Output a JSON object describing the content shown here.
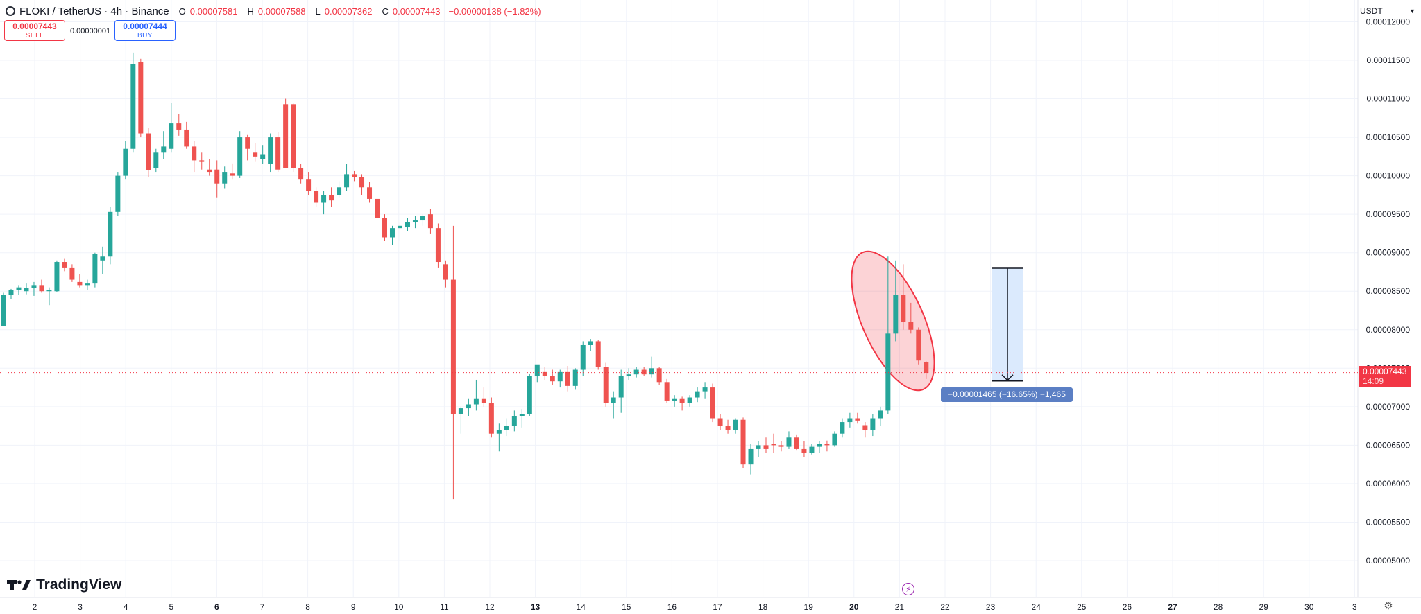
{
  "header": {
    "symbol": "FLOKI / TetherUS · 4h · Binance",
    "o_label": "O",
    "o_value": "0.00007581",
    "h_label": "H",
    "h_value": "0.00007588",
    "l_label": "L",
    "l_value": "0.00007362",
    "c_label": "C",
    "c_value": "0.00007443",
    "change": "−0.00000138 (−1.82%)"
  },
  "trade": {
    "sell_price": "0.00007443",
    "sell_label": "SELL",
    "buy_price": "0.00007444",
    "buy_label": "BUY",
    "spread": "0.00000001"
  },
  "currency": "USDT",
  "last_price": {
    "value": "0.00007443",
    "countdown": "14:09"
  },
  "measure": {
    "label": "−0.00001465 (−16.65%) −1,465",
    "start": 8.799e-05,
    "end": 7.334e-05
  },
  "logo": "TradingView",
  "colors": {
    "up": "#26a69a",
    "down": "#ef5350",
    "highlight": "#f23645",
    "measure_fill": "#dbeafd",
    "measure_label": "#5b7fc4"
  },
  "icons": {
    "settings": "gear-icon",
    "flash": "lightning-icon",
    "dropdown": "chevron-down-icon"
  },
  "chart_data": {
    "type": "candlestick",
    "title": "FLOKI / TetherUS · 4h · Binance",
    "ylim": [
      4.62e-05,
      1.22e-05
    ],
    "y_ticks": [
      "0.00012000",
      "0.00011500",
      "0.00011000",
      "0.00010500",
      "0.00010000",
      "0.00009500",
      "0.00009000",
      "0.00008500",
      "0.00008000",
      "0.00007500",
      "0.00007000",
      "0.00006500",
      "0.00006000",
      "0.00005500",
      "0.00005000"
    ],
    "x_ticks": [
      {
        "label": "2",
        "bold": false
      },
      {
        "label": "3",
        "bold": false
      },
      {
        "label": "4",
        "bold": false
      },
      {
        "label": "5",
        "bold": false
      },
      {
        "label": "6",
        "bold": true
      },
      {
        "label": "7",
        "bold": false
      },
      {
        "label": "8",
        "bold": false
      },
      {
        "label": "9",
        "bold": false
      },
      {
        "label": "10",
        "bold": false
      },
      {
        "label": "11",
        "bold": false
      },
      {
        "label": "12",
        "bold": false
      },
      {
        "label": "13",
        "bold": true
      },
      {
        "label": "14",
        "bold": false
      },
      {
        "label": "15",
        "bold": false
      },
      {
        "label": "16",
        "bold": false
      },
      {
        "label": "17",
        "bold": false
      },
      {
        "label": "18",
        "bold": false
      },
      {
        "label": "19",
        "bold": false
      },
      {
        "label": "20",
        "bold": true
      },
      {
        "label": "21",
        "bold": false
      },
      {
        "label": "22",
        "bold": false
      },
      {
        "label": "23",
        "bold": false
      },
      {
        "label": "24",
        "bold": false
      },
      {
        "label": "25",
        "bold": false
      },
      {
        "label": "26",
        "bold": false
      },
      {
        "label": "27",
        "bold": true
      },
      {
        "label": "28",
        "bold": false
      },
      {
        "label": "29",
        "bold": false
      },
      {
        "label": "30",
        "bold": false
      },
      {
        "label": "3",
        "bold": false
      }
    ],
    "candles": [
      [
        8.05e-05,
        8.48e-05,
        8.05e-05,
        8.45e-05
      ],
      [
        8.45e-05,
        8.53e-05,
        8.4e-05,
        8.52e-05
      ],
      [
        8.52e-05,
        8.58e-05,
        8.45e-05,
        8.55e-05
      ],
      [
        8.5e-05,
        8.6e-05,
        8.46e-05,
        8.54e-05
      ],
      [
        8.54e-05,
        8.62e-05,
        8.44e-05,
        8.58e-05
      ],
      [
        8.58e-05,
        8.65e-05,
        8.48e-05,
        8.5e-05
      ],
      [
        8.5e-05,
        8.55e-05,
        8.32e-05,
        8.52e-05
      ],
      [
        8.5e-05,
        8.9e-05,
        8.49e-05,
        8.88e-05
      ],
      [
        8.88e-05,
        8.92e-05,
        8.76e-05,
        8.8e-05
      ],
      [
        8.8e-05,
        8.85e-05,
        8.62e-05,
        8.65e-05
      ],
      [
        8.62e-05,
        8.72e-05,
        8.55e-05,
        8.58e-05
      ],
      [
        8.58e-05,
        8.65e-05,
        8.52e-05,
        8.6e-05
      ],
      [
        8.6e-05,
        9e-05,
        8.55e-05,
        8.98e-05
      ],
      [
        8.9e-05,
        9.08e-05,
        8.72e-05,
        8.95e-05
      ],
      [
        8.95e-05,
        9.6e-05,
        8.85e-05,
        9.53e-05
      ],
      [
        9.53e-05,
        0.0001005,
        9.48e-05,
        0.0001
      ],
      [
        0.0001,
        0.0001045,
        9.95e-05,
        0.0001035
      ],
      [
        0.0001035,
        0.000116,
        0.000103,
        0.0001145
      ],
      [
        0.0001148,
        0.0001152,
        0.000105,
        0.0001055
      ],
      [
        0.0001055,
        0.0001062,
        9.98e-05,
        0.0001007
      ],
      [
        0.000101,
        0.0001035,
        0.0001005,
        0.000103
      ],
      [
        0.000103,
        0.0001058,
        0.0001022,
        0.0001038
      ],
      [
        0.0001035,
        0.0001095,
        0.000103,
        0.0001068
      ],
      [
        0.0001068,
        0.000108,
        0.0001052,
        0.000106
      ],
      [
        0.000106,
        0.000107,
        0.0001035,
        0.0001038
      ],
      [
        0.0001038,
        0.0001045,
        0.0001005,
        0.000102
      ],
      [
        0.000102,
        0.000103,
        0.0001008,
        0.0001018
      ],
      [
        0.0001008,
        0.0001022,
        0.0001,
        0.0001005
      ],
      [
        0.0001008,
        0.000102,
        9.72e-05,
        9.9e-05
      ],
      [
        9.9e-05,
        0.0001012,
        9.83e-05,
        0.0001005
      ],
      [
        0.0001003,
        0.0001016,
        9.95e-05,
        0.0001
      ],
      [
        0.0001,
        0.0001058,
        9.97e-05,
        0.000105
      ],
      [
        0.000105,
        0.0001053,
        0.000102,
        0.0001035
      ],
      [
        0.000103,
        0.0001042,
        0.0001018,
        0.0001025
      ],
      [
        0.0001022,
        0.000104,
        0.0001015,
        0.0001028
      ],
      [
        0.0001015,
        0.0001055,
        0.0001005,
        0.000105
      ],
      [
        0.000105,
        0.0001057,
        0.0001005,
        0.0001008
      ],
      [
        0.0001093,
        0.00011,
        0.000101,
        0.000101
      ],
      [
        0.0001093,
        0.0001095,
        0.0001005,
        0.000101
      ],
      [
        0.000101,
        0.0001015,
        9.9e-05,
        9.95e-05
      ],
      [
        9.95e-05,
        0.0001005,
        9.75e-05,
        9.8e-05
      ],
      [
        9.8e-05,
        9.85e-05,
        9.6e-05,
        9.65e-05
      ],
      [
        9.65e-05,
        9.8e-05,
        9.5e-05,
        9.75e-05
      ],
      [
        9.75e-05,
        9.85e-05,
        9.6e-05,
        9.68e-05
      ],
      [
        9.75e-05,
        9.93e-05,
        9.72e-05,
        9.85e-05
      ],
      [
        9.85e-05,
        0.0001015,
        9.8e-05,
        0.0001002
      ],
      [
        0.0001002,
        0.0001006,
        9.93e-05,
        9.98e-05
      ],
      [
        9.98e-05,
        0.0001002,
        9.75e-05,
        9.85e-05
      ],
      [
        9.85e-05,
        9.92e-05,
        9.65e-05,
        9.7e-05
      ],
      [
        9.7e-05,
        9.75e-05,
        9.4e-05,
        9.45e-05
      ],
      [
        9.45e-05,
        9.5e-05,
        9.15e-05,
        9.2e-05
      ],
      [
        9.2e-05,
        9.35e-05,
        9.1e-05,
        9.32e-05
      ],
      [
        9.32e-05,
        9.4e-05,
        9.15e-05,
        9.35e-05
      ],
      [
        9.33e-05,
        9.45e-05,
        9.28e-05,
        9.4e-05
      ],
      [
        9.4e-05,
        9.48e-05,
        9.32e-05,
        9.42e-05
      ],
      [
        9.42e-05,
        9.5e-05,
        9.35e-05,
        9.48e-05
      ],
      [
        9.5e-05,
        9.57e-05,
        9.25e-05,
        9.32e-05
      ],
      [
        9.32e-05,
        9.38e-05,
        8.8e-05,
        8.88e-05
      ],
      [
        8.85e-05,
        8.9e-05,
        8.55e-05,
        8.65e-05
      ],
      [
        8.65e-05,
        9.35e-05,
        5.8e-05,
        6.9e-05
      ],
      [
        6.9e-05,
        7e-05,
        6.65e-05,
        6.98e-05
      ],
      [
        6.98e-05,
        7.1e-05,
        6.88e-05,
        7.03e-05
      ],
      [
        7.03e-05,
        7.35e-05,
        6.95e-05,
        7.1e-05
      ],
      [
        7.1e-05,
        7.25e-05,
        7e-05,
        7.05e-05
      ],
      [
        7.05e-05,
        7.12e-05,
        6.6e-05,
        6.65e-05
      ],
      [
        6.65e-05,
        6.78e-05,
        6.42e-05,
        6.7e-05
      ],
      [
        6.7e-05,
        6.85e-05,
        6.62e-05,
        6.75e-05
      ],
      [
        6.75e-05,
        6.95e-05,
        6.68e-05,
        6.88e-05
      ],
      [
        6.88e-05,
        6.97e-05,
        6.73e-05,
        6.9e-05
      ],
      [
        6.9e-05,
        7.43e-05,
        6.88e-05,
        7.4e-05
      ],
      [
        7.4e-05,
        7.52e-05,
        7.32e-05,
        7.55e-05
      ],
      [
        7.45e-05,
        7.52e-05,
        7.35e-05,
        7.4e-05
      ],
      [
        7.4e-05,
        7.48e-05,
        7.28e-05,
        7.33e-05
      ],
      [
        7.33e-05,
        7.48e-05,
        7.25e-05,
        7.45e-05
      ],
      [
        7.45e-05,
        7.53e-05,
        7.2e-05,
        7.27e-05
      ],
      [
        7.27e-05,
        7.5e-05,
        7.22e-05,
        7.48e-05
      ],
      [
        7.48e-05,
        7.85e-05,
        7.4e-05,
        7.8e-05
      ],
      [
        7.8e-05,
        7.88e-05,
        7.72e-05,
        7.85e-05
      ],
      [
        7.85e-05,
        7.87e-05,
        7.48e-05,
        7.52e-05
      ],
      [
        7.52e-05,
        7.57e-05,
        7e-05,
        7.05e-05
      ],
      [
        7.05e-05,
        7.2e-05,
        6.85e-05,
        7.12e-05
      ],
      [
        7.12e-05,
        7.48e-05,
        6.92e-05,
        7.4e-05
      ],
      [
        7.4e-05,
        7.5e-05,
        7.35e-05,
        7.42e-05
      ],
      [
        7.42e-05,
        7.52e-05,
        7.38e-05,
        7.48e-05
      ],
      [
        7.48e-05,
        7.52e-05,
        7.4e-05,
        7.42e-05
      ],
      [
        7.42e-05,
        7.65e-05,
        7.38e-05,
        7.5e-05
      ],
      [
        7.5e-05,
        7.52e-05,
        7.28e-05,
        7.32e-05
      ],
      [
        7.32e-05,
        7.36e-05,
        7.05e-05,
        7.08e-05
      ],
      [
        7.08e-05,
        7.15e-05,
        7e-05,
        7.1e-05
      ],
      [
        7.1e-05,
        7.13e-05,
        6.95e-05,
        7.05e-05
      ],
      [
        7.05e-05,
        7.15e-05,
        7e-05,
        7.12e-05
      ],
      [
        7.12e-05,
        7.25e-05,
        7.06e-05,
        7.2e-05
      ],
      [
        7.2e-05,
        7.32e-05,
        7.1e-05,
        7.25e-05
      ],
      [
        7.25e-05,
        7.3e-05,
        6.8e-05,
        6.85e-05
      ],
      [
        6.85e-05,
        6.9e-05,
        6.7e-05,
        6.75e-05
      ],
      [
        6.75e-05,
        6.83e-05,
        6.65e-05,
        6.7e-05
      ],
      [
        6.7e-05,
        6.85e-05,
        6.65e-05,
        6.83e-05
      ],
      [
        6.83e-05,
        6.86e-05,
        6.2e-05,
        6.25e-05
      ],
      [
        6.25e-05,
        6.52e-05,
        6.12e-05,
        6.45e-05
      ],
      [
        6.45e-05,
        6.55e-05,
        6.35e-05,
        6.5e-05
      ],
      [
        6.5e-05,
        6.6e-05,
        6.4e-05,
        6.45e-05
      ],
      [
        6.52e-05,
        6.65e-05,
        6.4e-05,
        6.5e-05
      ],
      [
        6.5e-05,
        6.55e-05,
        6.42e-05,
        6.48e-05
      ],
      [
        6.48e-05,
        6.68e-05,
        6.45e-05,
        6.6e-05
      ],
      [
        6.6e-05,
        6.64e-05,
        6.43e-05,
        6.45e-05
      ],
      [
        6.45e-05,
        6.55e-05,
        6.35e-05,
        6.4e-05
      ],
      [
        6.4e-05,
        6.52e-05,
        6.38e-05,
        6.48e-05
      ],
      [
        6.48e-05,
        6.55e-05,
        6.4e-05,
        6.52e-05
      ],
      [
        6.52e-05,
        6.56e-05,
        6.42e-05,
        6.5e-05
      ],
      [
        6.5e-05,
        6.68e-05,
        6.48e-05,
        6.65e-05
      ],
      [
        6.65e-05,
        6.85e-05,
        6.6e-05,
        6.8e-05
      ],
      [
        6.8e-05,
        6.92e-05,
        6.73e-05,
        6.85e-05
      ],
      [
        6.85e-05,
        6.92e-05,
        6.78e-05,
        6.82e-05
      ],
      [
        6.76e-05,
        6.8e-05,
        6.6e-05,
        6.7e-05
      ],
      [
        6.7e-05,
        6.9e-05,
        6.62e-05,
        6.85e-05
      ],
      [
        6.85e-05,
        7e-05,
        6.75e-05,
        6.95e-05
      ],
      [
        6.95e-05,
        8.95e-05,
        6.9e-05,
        7.95e-05
      ],
      [
        7.95e-05,
        8.9e-05,
        7.85e-05,
        8.45e-05
      ],
      [
        8.45e-05,
        8.85e-05,
        8e-05,
        8.1e-05
      ],
      [
        8.1e-05,
        8.35e-05,
        7.95e-05,
        8e-05
      ],
      [
        8e-05,
        8.03e-05,
        7.55e-05,
        7.6e-05
      ],
      [
        7.58e-05,
        7.59e-05,
        7.36e-05,
        7.44e-05
      ]
    ]
  }
}
